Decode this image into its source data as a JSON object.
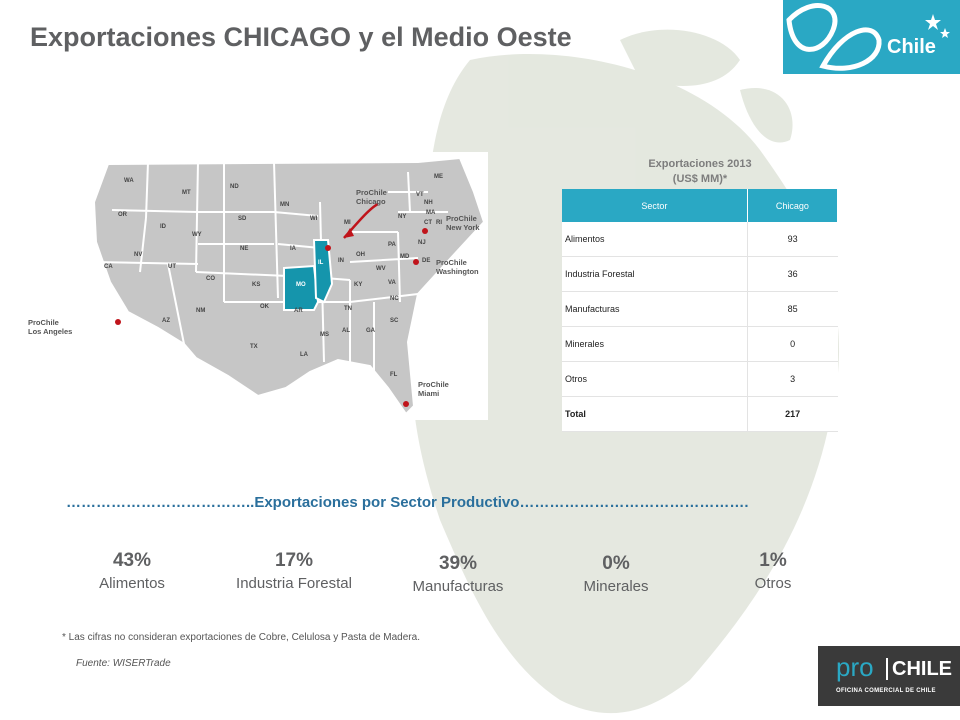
{
  "title": "Exportaciones CHICAGO y el Medio Oeste",
  "brand": {
    "chile_logo_text": "Chile",
    "prochile_pro": "pro",
    "prochile_chile": "CHILE",
    "prochile_sub": "OFICINA COMERCIAL DE CHILE",
    "accent_color": "#2aa8c4"
  },
  "map": {
    "state_labels": [
      "WA",
      "OR",
      "CA",
      "NV",
      "ID",
      "MT",
      "WY",
      "UT",
      "AZ",
      "CO",
      "NM",
      "ND",
      "SD",
      "NE",
      "KS",
      "OK",
      "TX",
      "MN",
      "IA",
      "MO",
      "AR",
      "LA",
      "WI",
      "IL",
      "MI",
      "IN",
      "OH",
      "KY",
      "TN",
      "MS",
      "AL",
      "GA",
      "FL",
      "SC",
      "NC",
      "VA",
      "WV",
      "PA",
      "NY",
      "VT",
      "NH",
      "ME",
      "MA",
      "CT",
      "RI",
      "NJ",
      "DE",
      "MD"
    ],
    "offices": [
      {
        "name": "ProChile Chicago",
        "line1": "ProChile",
        "line2": "Chicago"
      },
      {
        "name": "ProChile New York",
        "line1": "ProChile",
        "line2": "New York"
      },
      {
        "name": "ProChile Washington",
        "line1": "ProChile",
        "line2": "Washington"
      },
      {
        "name": "ProChile Los Angeles",
        "line1": "ProChile",
        "line2": "Los Angeles"
      },
      {
        "name": "ProChile Miami",
        "line1": "ProChile",
        "line2": "Miami"
      }
    ],
    "highlight_color": "#1595ac",
    "office_dot_color": "#c0141b"
  },
  "table": {
    "caption_line1": "Exportaciones 2013",
    "caption_line2": "(US$ MM)*",
    "headers": [
      "Sector",
      "Chicago"
    ],
    "rows": [
      {
        "sector": "Alimentos",
        "value": "93"
      },
      {
        "sector": "Industria Forestal",
        "value": "36"
      },
      {
        "sector": "Manufacturas",
        "value": "85"
      },
      {
        "sector": "Minerales",
        "value": "0"
      },
      {
        "sector": "Otros",
        "value": "3"
      }
    ],
    "total": {
      "sector": "Total",
      "value": "217"
    }
  },
  "section_title": "………………………………..Exportaciones  por  Sector Productivo……………………………………….",
  "stats": [
    {
      "pct": "43%",
      "name": "Alimentos"
    },
    {
      "pct": "17%",
      "name": "Industria Forestal"
    },
    {
      "pct": "39%",
      "name": "Manufacturas"
    },
    {
      "pct": "0%",
      "name": "Minerales"
    },
    {
      "pct": "1%",
      "name": "Otros"
    }
  ],
  "footnote": "* Las cifras  no consideran  exportaciones de Cobre, Celulosa y Pasta de Madera.",
  "source": "Fuente: WISERTrade"
}
